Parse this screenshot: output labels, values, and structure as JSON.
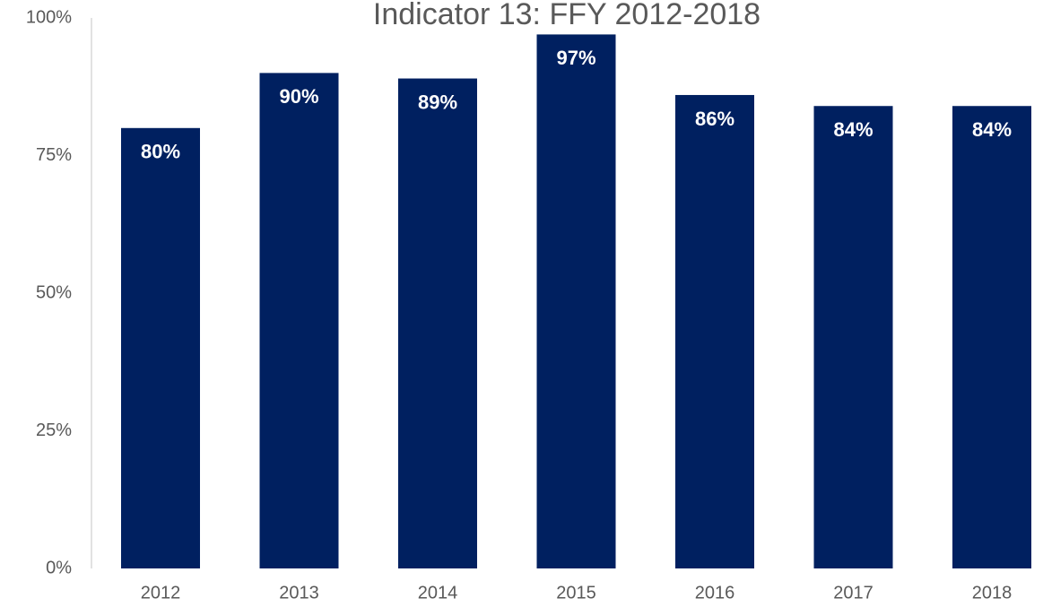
{
  "chart_data": {
    "type": "bar",
    "title": "Indicator 13: FFY 2012-2018",
    "categories": [
      "2012",
      "2013",
      "2014",
      "2015",
      "2016",
      "2017",
      "2018"
    ],
    "values": [
      80,
      90,
      89,
      97,
      86,
      84,
      84
    ],
    "value_labels": [
      "80%",
      "90%",
      "89%",
      "97%",
      "86%",
      "84%",
      "84%"
    ],
    "color": "#002060",
    "ylim": [
      0,
      100
    ],
    "yticks": [
      {
        "value": 0,
        "label": "0%"
      },
      {
        "value": 25,
        "label": "25%"
      },
      {
        "value": 50,
        "label": "50%"
      },
      {
        "value": 75,
        "label": "75%"
      },
      {
        "value": 100,
        "label": "100%"
      }
    ],
    "grid": false
  }
}
